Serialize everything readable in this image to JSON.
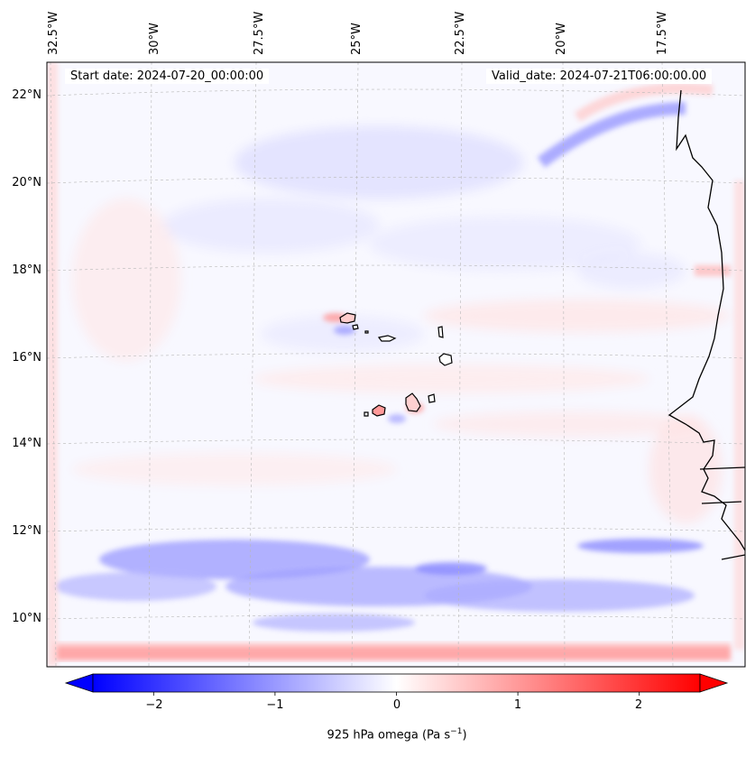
{
  "header": {
    "start_date": "Start date: 2024-07-20_00:00:00",
    "valid_date": "Valid_date: 2024-07-21T06:00:00.00"
  },
  "map": {
    "region": "Cape Verde / West African coast",
    "longitude_labels": [
      "32.5°W",
      "30°W",
      "27.5°W",
      "25°W",
      "22.5°W",
      "20°W",
      "17.5°W"
    ],
    "latitude_labels": [
      "22°N",
      "20°N",
      "18°N",
      "16°N",
      "14°N",
      "12°N",
      "10°N"
    ],
    "gridlines": true
  },
  "colorbar": {
    "ticks": [
      "−2",
      "−1",
      "0",
      "1",
      "2"
    ],
    "tick_values": [
      -2,
      -1,
      0,
      1,
      2
    ],
    "range": [
      -2.5,
      2.5
    ],
    "label_text": "925 hPa omega (Pa s",
    "label_sup": "−1",
    "label_close": ")",
    "cmap": "bwr",
    "low_color": "#0000ff",
    "mid_color": "#ffffff",
    "high_color": "#ff0000",
    "extend": "both"
  }
}
